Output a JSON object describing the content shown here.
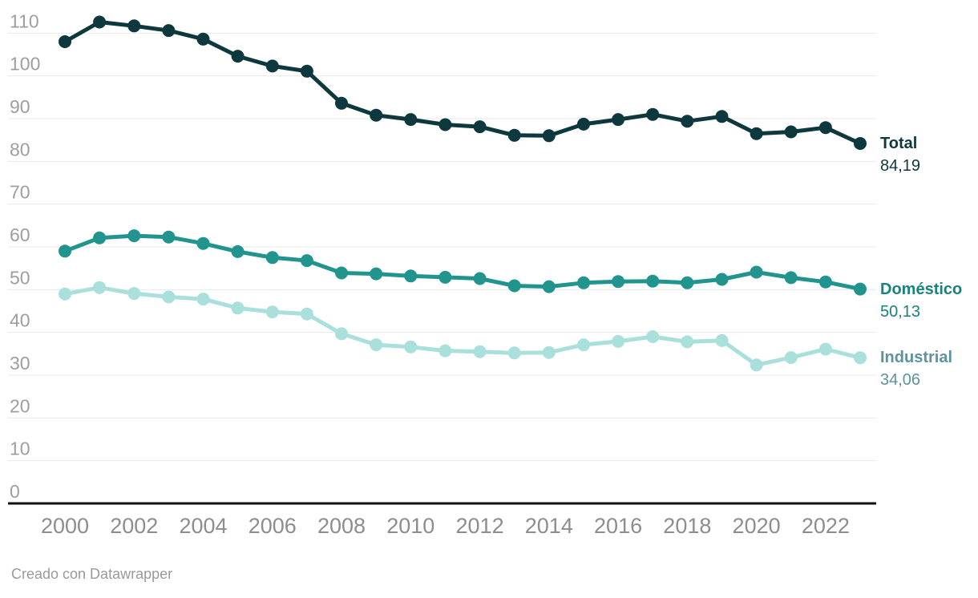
{
  "chart_data": {
    "type": "line",
    "x": [
      2000,
      2001,
      2002,
      2003,
      2004,
      2005,
      2006,
      2007,
      2008,
      2009,
      2010,
      2011,
      2012,
      2013,
      2014,
      2015,
      2016,
      2017,
      2018,
      2019,
      2020,
      2021,
      2022,
      2023
    ],
    "series": [
      {
        "name": "Total",
        "values": [
          108.0,
          112.6,
          111.7,
          110.6,
          108.6,
          104.6,
          102.3,
          101.1,
          93.6,
          90.8,
          89.8,
          88.6,
          88.1,
          86.1,
          86.0,
          88.7,
          89.8,
          91.0,
          89.4,
          90.5,
          86.5,
          86.9,
          87.9,
          84.19
        ],
        "last_value_label": "84,19",
        "color": "#0d383d",
        "label_color": "#0d383d"
      },
      {
        "name": "Doméstico",
        "values": [
          59.0,
          62.1,
          62.6,
          62.3,
          60.8,
          58.9,
          57.5,
          56.8,
          53.9,
          53.7,
          53.2,
          52.9,
          52.6,
          50.9,
          50.7,
          51.6,
          51.9,
          52.0,
          51.6,
          52.4,
          54.1,
          52.8,
          51.8,
          50.13
        ],
        "last_value_label": "50,13",
        "color": "#20948d",
        "label_color": "#17837d"
      },
      {
        "name": "Industrial",
        "values": [
          49.0,
          50.5,
          49.1,
          48.3,
          47.8,
          45.7,
          44.8,
          44.3,
          39.7,
          37.1,
          36.6,
          35.7,
          35.5,
          35.2,
          35.3,
          37.1,
          37.9,
          39.0,
          37.8,
          38.1,
          32.4,
          34.1,
          36.1,
          34.06
        ],
        "last_value_label": "34,06",
        "color": "#a9e0db",
        "label_color": "#5d939b"
      }
    ],
    "y_ticks": [
      0,
      10,
      20,
      30,
      40,
      50,
      60,
      70,
      80,
      90,
      100,
      110
    ],
    "x_ticks": [
      2000,
      2002,
      2004,
      2006,
      2008,
      2010,
      2012,
      2014,
      2016,
      2018,
      2020,
      2022
    ],
    "ylim": [
      0,
      115
    ],
    "xlabel": "",
    "ylabel": "",
    "grid": "horizontal",
    "legend_position": "right-end-labels",
    "gridline_color": "#e9e9e9",
    "baseline_color": "#111111",
    "y_tick_color": "#9e9e9e",
    "x_tick_color": "#8d8d8d"
  },
  "footer": {
    "text": "Creado con Datawrapper"
  }
}
